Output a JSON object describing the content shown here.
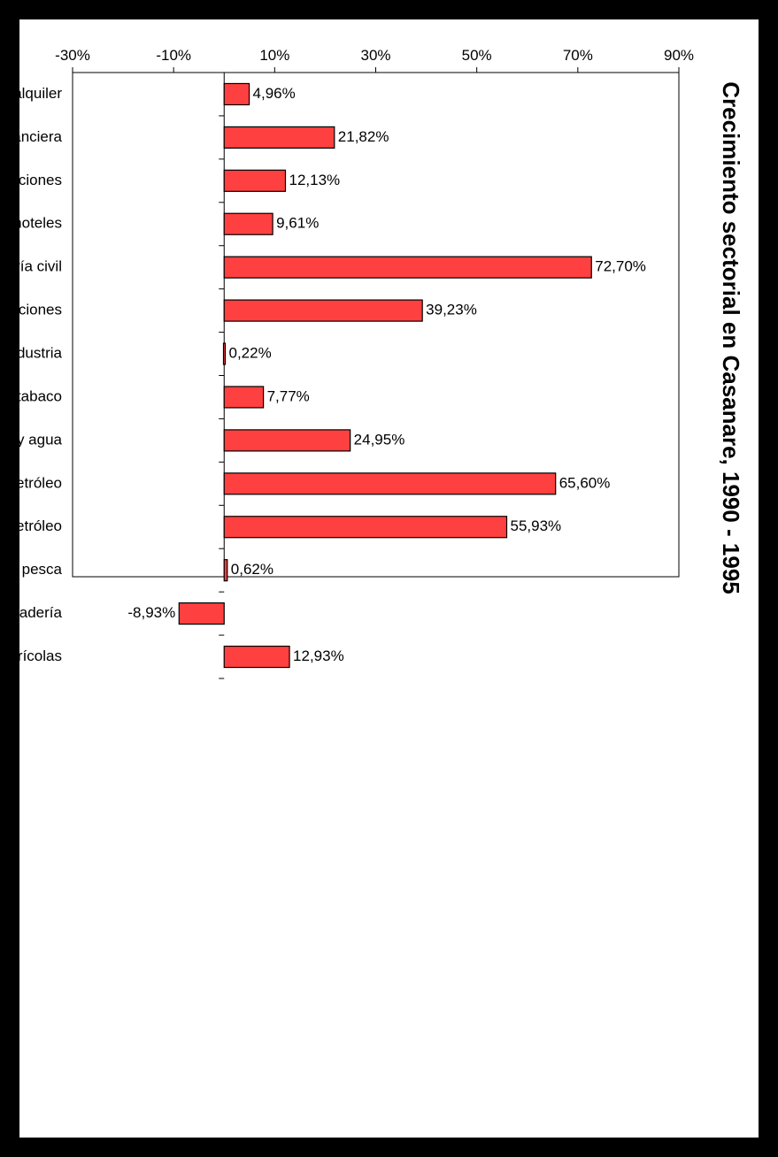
{
  "chart_data": {
    "type": "bar",
    "title": "Crecimiento sectorial en Casanare, 1990 - 1995",
    "xlabel": "",
    "ylabel": "",
    "categories": [
      "Inmobiliarios y serv de alquiler",
      "Intermediación financiera",
      "Transporte, almacenamiento y comunicaciones",
      "Comercio, reparación, restaurantes y hoteles",
      "Trabajos y obras de ingeniería civil",
      "Trabajos de construcción edificaciones",
      "Resto de la industria",
      "Alimentos bebidas y tabaco",
      "Electricidad gas y agua",
      "Minería sin petróleo",
      "Petróleo",
      "Silvicultura y pesca",
      "Ganadería",
      "Agrícolas"
    ],
    "values": [
      4.96,
      21.82,
      12.13,
      9.61,
      72.7,
      39.23,
      0.22,
      7.77,
      24.95,
      65.6,
      55.93,
      0.62,
      -8.93,
      12.93
    ],
    "value_labels": [
      "4,96%",
      "21,82%",
      "12,13%",
      "9,61%",
      "72,70%",
      "39,23%",
      "0,22%",
      "7,77%",
      "24,95%",
      "65,60%",
      "55,93%",
      "0,62%",
      "-8,93%",
      "12,93%"
    ],
    "ylim": [
      -30,
      90
    ],
    "ticks": [
      -30,
      -10,
      10,
      30,
      50,
      70,
      90
    ],
    "tick_labels": [
      "-30%",
      "-10%",
      "10%",
      "30%",
      "50%",
      "70%",
      "90%"
    ],
    "grid": false,
    "legend": "none",
    "bar_color": "#ff4040",
    "orientation": "rotated 90° clockwise"
  }
}
